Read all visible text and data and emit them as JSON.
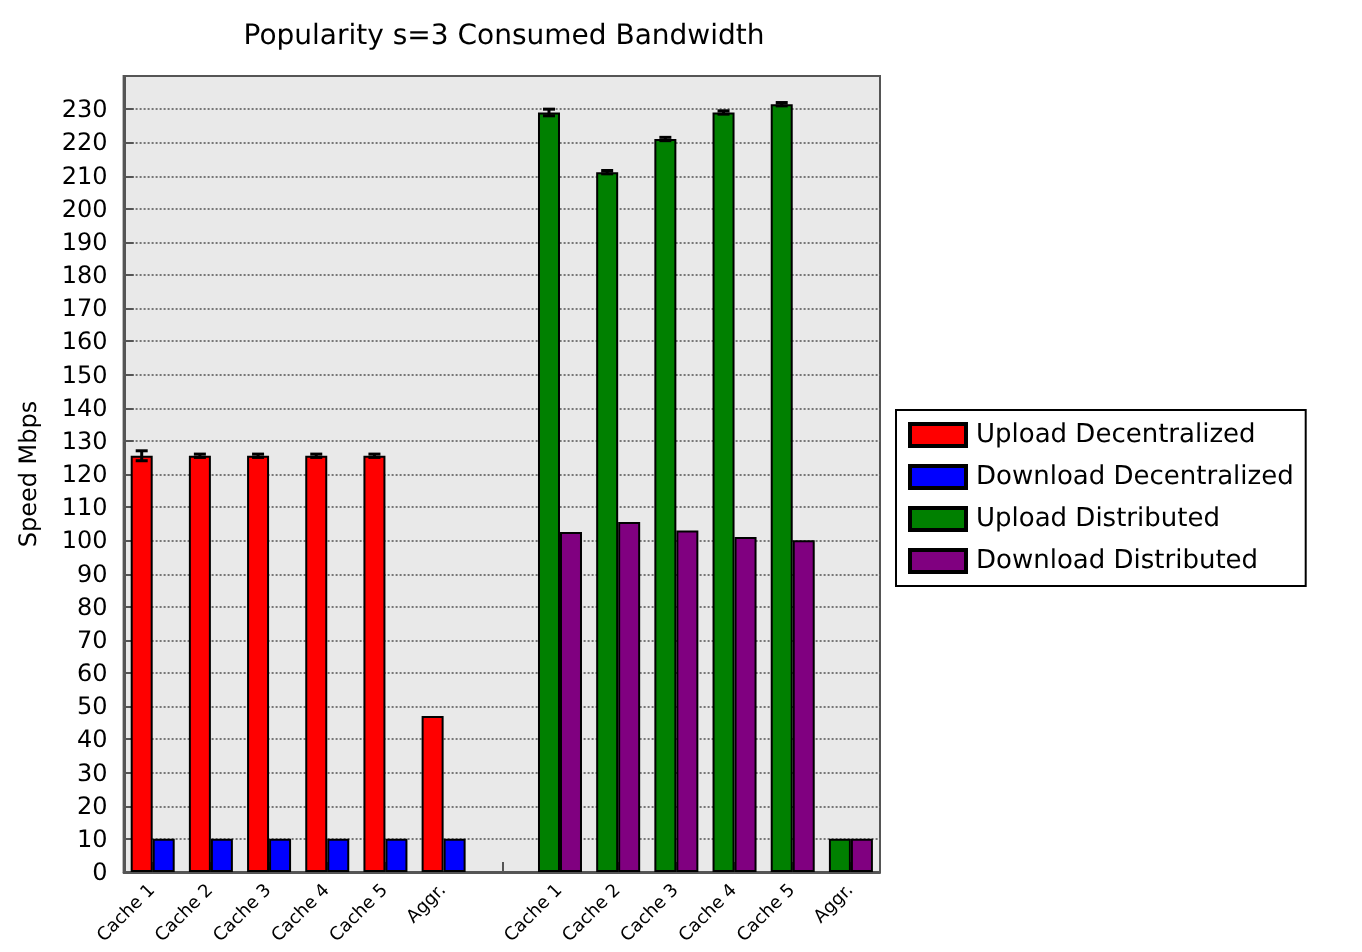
{
  "chart_data": {
    "type": "bar",
    "title": "Popularity s=3 Consumed Bandwidth",
    "ylabel": "Speed Mbps",
    "categories": [
      "Cache 1",
      "Cache 2",
      "Cache 3",
      "Cache 4",
      "Cache 5",
      "Aggr.",
      null,
      "Cache 1",
      "Cache 2",
      "Cache 3",
      "Cache 4",
      "Cache 5",
      "Aggr."
    ],
    "series": [
      {
        "name": "Upload Decentralized",
        "color": "#ff0000",
        "values": [
          125.5,
          125.5,
          125.5,
          125.5,
          125.5,
          47,
          null,
          null,
          null,
          null,
          null,
          null,
          null
        ],
        "errors": [
          1.5,
          0.5,
          0.5,
          0.5,
          0.5,
          null,
          null,
          null,
          null,
          null,
          null,
          null,
          null
        ]
      },
      {
        "name": "Download Decentralized",
        "color": "#0000ff",
        "values": [
          10,
          10,
          10,
          10,
          10,
          10,
          null,
          null,
          null,
          null,
          null,
          null,
          null
        ]
      },
      {
        "name": "Upload Distributed",
        "color": "#008000",
        "values": [
          null,
          null,
          null,
          null,
          null,
          null,
          null,
          229,
          211,
          221,
          229,
          231.5,
          10
        ],
        "errors": [
          null,
          null,
          null,
          null,
          null,
          null,
          null,
          1,
          0.5,
          0.5,
          0.5,
          0.5,
          null
        ]
      },
      {
        "name": "Download Distributed",
        "color": "#800080",
        "values": [
          null,
          null,
          null,
          null,
          null,
          null,
          null,
          102.5,
          105.5,
          103,
          101,
          100,
          10
        ]
      }
    ],
    "ylim": [
      0,
      240
    ],
    "yticks": [
      0,
      10,
      20,
      30,
      40,
      50,
      60,
      70,
      80,
      90,
      100,
      110,
      120,
      130,
      140,
      150,
      160,
      170,
      180,
      190,
      200,
      210,
      220,
      230
    ],
    "grid": "y",
    "legend": "right"
  }
}
